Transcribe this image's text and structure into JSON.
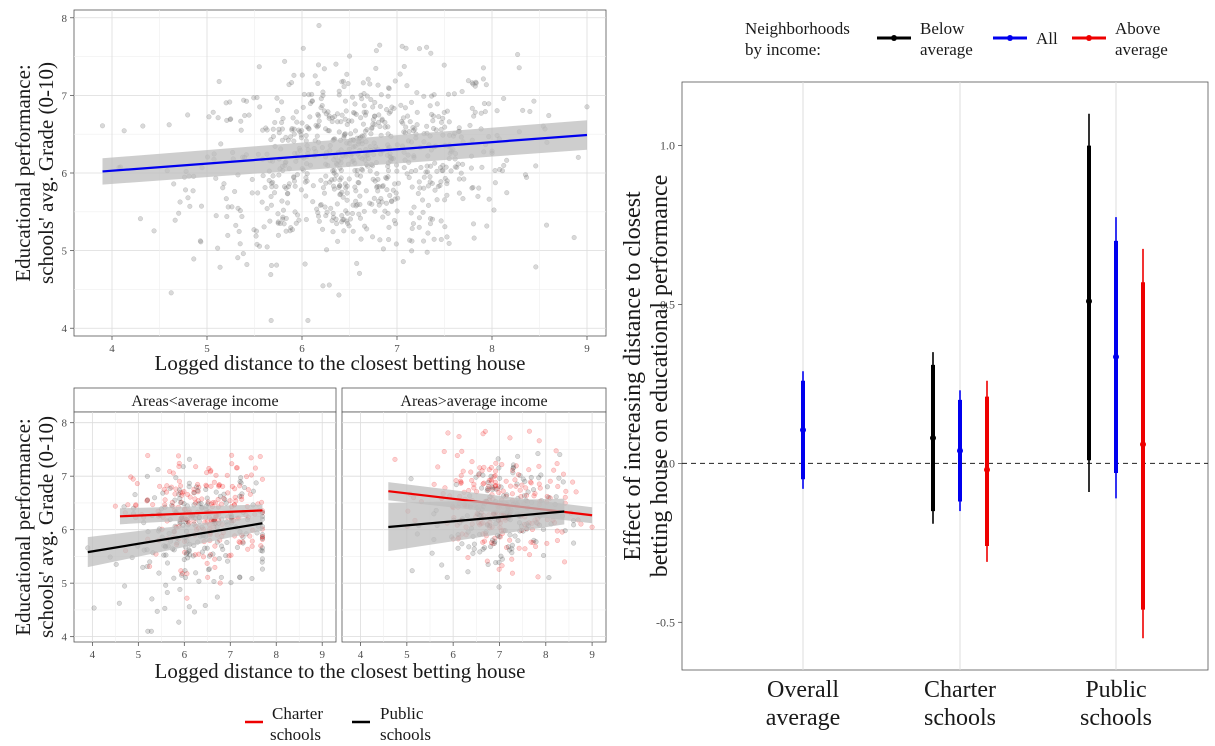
{
  "colors": {
    "all": "#0000ee",
    "below": "#000000",
    "above": "#ee0000",
    "charter": "#ee0000",
    "public": "#000000",
    "points": "#777777",
    "band": "#bdbdbd"
  },
  "top_panel": {
    "ylabel_line1": "Educational performance:",
    "ylabel_line2": "schools' avg. Grade (0-10)",
    "xlabel": "Logged distance to the closest betting house"
  },
  "bottom_panels": {
    "ylabel_line1": "Educational performance:",
    "ylabel_line2": "schools' avg. Grade (0-10)",
    "xlabel": "Logged distance to the closest betting house",
    "strip_left": "Areas<average income",
    "strip_right": "Areas>average income"
  },
  "bottom_legend": {
    "charter_line1": "Charter",
    "charter_line2": "schools",
    "public_line1": "Public",
    "public_line2": "schools"
  },
  "right_legend": {
    "title_line1": "Neighborhoods",
    "title_line2": "by income:",
    "below_line1": "Below",
    "below_line2": "average",
    "all": "All",
    "above_line1": "Above",
    "above_line2": "average"
  },
  "right_panel": {
    "ylabel_line1": "Effect of increasing distance to closest",
    "ylabel_line2": "betting house on educational performance",
    "categories": [
      {
        "line1": "Overall",
        "line2": "average"
      },
      {
        "line1": "Charter",
        "line2": "schools"
      },
      {
        "line1": "Public",
        "line2": "schools"
      }
    ]
  },
  "chart_data": [
    {
      "type": "scatter",
      "title": "",
      "xlabel": "Logged distance to the closest betting house",
      "ylabel": "Educational performance: schools' avg. Grade (0-10)",
      "xlim": [
        3.6,
        9.2
      ],
      "ylim": [
        3.9,
        8.1
      ],
      "xticks": [
        4,
        5,
        6,
        7,
        8,
        9
      ],
      "yticks": [
        4,
        5,
        6,
        7,
        8
      ],
      "grid": true,
      "points_description": "approximately 800 schools, grey semi-transparent points",
      "fit": {
        "color": "blue",
        "x": [
          3.9,
          9.0
        ],
        "y": [
          6.02,
          6.49
        ],
        "ci_low": [
          5.85,
          6.3
        ],
        "ci_high": [
          6.19,
          6.68
        ]
      }
    },
    {
      "type": "scatter",
      "title": "Areas<average income",
      "xlabel": "Logged distance to the closest betting house",
      "xlim": [
        3.6,
        9.3
      ],
      "ylim": [
        3.9,
        8.2
      ],
      "xticks": [
        4,
        5,
        6,
        7,
        8,
        9
      ],
      "yticks": [
        4,
        5,
        6,
        7,
        8
      ],
      "series": [
        {
          "name": "Charter schools",
          "color": "red",
          "fit_x": [
            4.6,
            7.7
          ],
          "fit_y": [
            6.25,
            6.36
          ],
          "ci_low": [
            6.1,
            6.25
          ],
          "ci_high": [
            6.4,
            6.47
          ]
        },
        {
          "name": "Public schools",
          "color": "black",
          "fit_x": [
            3.9,
            7.7
          ],
          "fit_y": [
            5.58,
            6.12
          ],
          "ci_low": [
            5.3,
            5.98
          ],
          "ci_high": [
            5.86,
            6.26
          ]
        }
      ]
    },
    {
      "type": "scatter",
      "title": "Areas>average income",
      "xlabel": "Logged distance to the closest betting house",
      "xlim": [
        3.6,
        9.3
      ],
      "ylim": [
        3.9,
        8.2
      ],
      "xticks": [
        4,
        5,
        6,
        7,
        8,
        9
      ],
      "yticks": [
        4,
        5,
        6,
        7,
        8
      ],
      "series": [
        {
          "name": "Charter schools",
          "color": "red",
          "fit_x": [
            4.6,
            9.0
          ],
          "fit_y": [
            6.72,
            6.27
          ],
          "ci_low": [
            6.55,
            6.12
          ],
          "ci_high": [
            6.89,
            6.42
          ]
        },
        {
          "name": "Public schools",
          "color": "black",
          "fit_x": [
            4.6,
            8.4
          ],
          "fit_y": [
            6.05,
            6.34
          ],
          "ci_low": [
            5.6,
            6.1
          ],
          "ci_high": [
            6.5,
            6.58
          ]
        }
      ]
    },
    {
      "type": "coefficient",
      "ylabel": "Effect of increasing distance to closest betting house on educational performance",
      "ylim": [
        -0.65,
        1.2
      ],
      "yticks": [
        -0.5,
        0.0,
        0.5,
        1.0
      ],
      "reference_line": 0,
      "categories": [
        "Overall average",
        "Charter schools",
        "Public schools"
      ],
      "series": [
        {
          "name": "Below average",
          "color": "black",
          "values": [
            null,
            0.08,
            0.51
          ],
          "ci90": [
            null,
            [
              -0.15,
              0.31
            ],
            [
              0.01,
              1.0
            ]
          ],
          "ci95": [
            null,
            [
              -0.19,
              0.35
            ],
            [
              -0.09,
              1.1
            ]
          ]
        },
        {
          "name": "All",
          "color": "blue",
          "values": [
            0.105,
            0.04,
            0.335
          ],
          "ci90": [
            [
              -0.05,
              0.26
            ],
            [
              -0.12,
              0.2
            ],
            [
              -0.03,
              0.7
            ]
          ],
          "ci95": [
            [
              -0.08,
              0.29
            ],
            [
              -0.15,
              0.23
            ],
            [
              -0.11,
              0.775
            ]
          ]
        },
        {
          "name": "Above average",
          "color": "red",
          "values": [
            null,
            -0.02,
            0.06
          ],
          "ci90": [
            null,
            [
              -0.26,
              0.21
            ],
            [
              -0.46,
              0.57
            ]
          ],
          "ci95": [
            null,
            [
              -0.31,
              0.26
            ],
            [
              -0.55,
              0.675
            ]
          ]
        }
      ]
    }
  ]
}
